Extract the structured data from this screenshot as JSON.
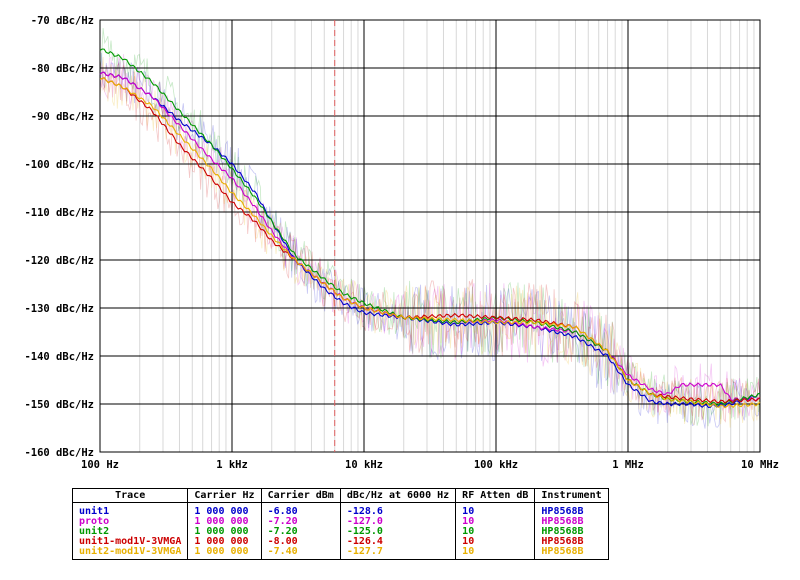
{
  "chart_data": {
    "type": "line",
    "x_scale": "log",
    "x_range": [
      100,
      10000000
    ],
    "y_range": [
      -160,
      -70
    ],
    "x_ticks": [
      {
        "value": 100,
        "label": "100 Hz"
      },
      {
        "value": 1000,
        "label": "1 kHz"
      },
      {
        "value": 10000,
        "label": "10 kHz"
      },
      {
        "value": 100000,
        "label": "100 kHz"
      },
      {
        "value": 1000000,
        "label": "1 MHz"
      },
      {
        "value": 10000000,
        "label": "10 MHz"
      }
    ],
    "y_ticks": [
      {
        "value": -70,
        "label": "-70 dBc/Hz"
      },
      {
        "value": -80,
        "label": "-80 dBc/Hz"
      },
      {
        "value": -90,
        "label": "-90 dBc/Hz"
      },
      {
        "value": -100,
        "label": "-100 dBc/Hz"
      },
      {
        "value": -110,
        "label": "-110 dBc/Hz"
      },
      {
        "value": -120,
        "label": "-120 dBc/Hz"
      },
      {
        "value": -130,
        "label": "-130 dBc/Hz"
      },
      {
        "value": -140,
        "label": "-140 dBc/Hz"
      },
      {
        "value": -150,
        "label": "-150 dBc/Hz"
      },
      {
        "value": -160,
        "label": "-160 dBc/Hz"
      }
    ],
    "grid": true,
    "marker_x": 6000,
    "series": [
      {
        "name": "unit1",
        "color": "#0000cc",
        "x": [
          100,
          150,
          250,
          400,
          700,
          1000,
          1500,
          2000,
          3000,
          5000,
          7000,
          10000,
          20000,
          50000,
          100000,
          200000,
          400000,
          700000,
          1000000,
          1500000,
          2000000,
          3000000,
          4000000,
          6000000,
          10000000
        ],
        "y": [
          -81,
          -82,
          -86,
          -91,
          -96,
          -100,
          -106,
          -112,
          -120,
          -126,
          -129,
          -131,
          -132,
          -133.5,
          -133,
          -134,
          -136,
          -140,
          -146,
          -149.5,
          -150,
          -150,
          -150.5,
          -150,
          -148
        ]
      },
      {
        "name": "proto",
        "color": "#cc00cc",
        "x": [
          100,
          150,
          250,
          400,
          700,
          1000,
          1500,
          2000,
          3000,
          5000,
          7000,
          10000,
          20000,
          50000,
          100000,
          200000,
          400000,
          700000,
          1000000,
          1500000,
          2000000,
          2500000,
          5000000,
          6000000,
          10000000
        ],
        "y": [
          -81,
          -82,
          -86,
          -92,
          -99,
          -103,
          -109,
          -114,
          -120,
          -125,
          -128,
          -130,
          -132,
          -133,
          -132.5,
          -134,
          -135,
          -139,
          -144,
          -147,
          -148,
          -146,
          -146,
          -149,
          -149
        ]
      },
      {
        "name": "unit2",
        "color": "#009900",
        "x": [
          100,
          150,
          250,
          400,
          700,
          1000,
          1500,
          2000,
          3000,
          5000,
          7000,
          10000,
          20000,
          50000,
          100000,
          200000,
          400000,
          700000,
          1000000,
          1500000,
          2000000,
          3000000,
          5000000,
          10000000
        ],
        "y": [
          -76,
          -78,
          -83,
          -89,
          -96,
          -101,
          -107,
          -112,
          -119,
          -124,
          -127,
          -129,
          -132,
          -133,
          -132,
          -133,
          -135,
          -139,
          -145,
          -148,
          -149,
          -149.5,
          -150,
          -148
        ]
      },
      {
        "name": "unit1-mod1V-3VMGA",
        "color": "#cc0000",
        "x": [
          100,
          150,
          250,
          400,
          700,
          1000,
          1500,
          2000,
          3000,
          5000,
          7000,
          10000,
          20000,
          50000,
          100000,
          200000,
          400000,
          700000,
          1000000,
          1500000,
          2000000,
          3000000,
          5000000,
          10000000
        ],
        "y": [
          -82,
          -84,
          -89,
          -96,
          -103,
          -108,
          -112,
          -116,
          -120,
          -125,
          -128,
          -130,
          -132,
          -131.5,
          -132,
          -132.5,
          -134,
          -139,
          -145,
          -148,
          -148.5,
          -149,
          -149.5,
          -149
        ]
      },
      {
        "name": "unit2-mod1V-3VMGA",
        "color": "#e8b000",
        "x": [
          100,
          150,
          250,
          400,
          700,
          1000,
          1500,
          2000,
          3000,
          5000,
          7000,
          10000,
          20000,
          50000,
          100000,
          200000,
          400000,
          700000,
          1000000,
          1500000,
          2000000,
          3000000,
          5000000,
          10000000
        ],
        "y": [
          -82,
          -84,
          -88,
          -94,
          -101,
          -106,
          -111,
          -115,
          -120,
          -125,
          -128,
          -130,
          -132,
          -132.5,
          -133,
          -133,
          -134,
          -139,
          -145,
          -148,
          -149,
          -149.5,
          -150.5,
          -150
        ]
      }
    ]
  },
  "table": {
    "headers": [
      "Trace",
      "Carrier Hz",
      "Carrier dBm",
      "dBc/Hz at 6000 Hz",
      "RF Atten dB",
      "Instrument"
    ],
    "rows": [
      {
        "color": "#0000cc",
        "cells": [
          "unit1",
          "1 000 000",
          "-6.80",
          "-128.6",
          "10",
          "HP8568B"
        ]
      },
      {
        "color": "#cc00cc",
        "cells": [
          "proto",
          "1 000 000",
          "-7.20",
          "-127.0",
          "10",
          "HP8568B"
        ]
      },
      {
        "color": "#009900",
        "cells": [
          "unit2",
          "1 000 000",
          "-7.20",
          "-125.0",
          "10",
          "HP8568B"
        ]
      },
      {
        "color": "#cc0000",
        "cells": [
          "unit1-mod1V-3VMGA",
          "1 000 000",
          "-8.00",
          "-126.4",
          "10",
          "HP8568B"
        ]
      },
      {
        "color": "#e8b000",
        "cells": [
          "unit2-mod1V-3VMGA",
          "1 000 000",
          "-7.40",
          "-127.7",
          "10",
          "HP8568B"
        ]
      }
    ]
  }
}
